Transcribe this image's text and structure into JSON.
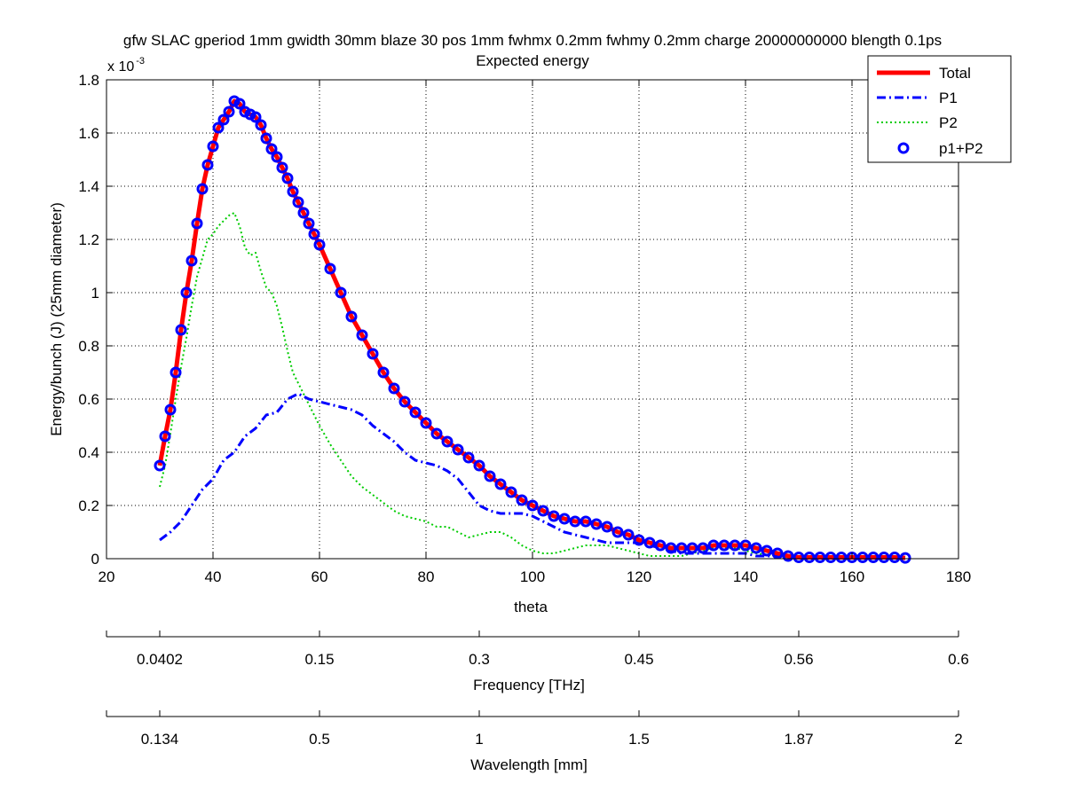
{
  "chart_data": {
    "type": "line",
    "title_line1": "gfw SLAC gperiod 1mm gwidth 30mm blaze 30 pos 1mm fwhmx 0.2mm fwhmy 0.2mm charge 20000000000 blength 0.1ps",
    "title_line2": "Expected energy",
    "xlabel": "theta",
    "ylabel": "Energy/bunch (J)  (25mm diameter)",
    "y_exponent_prefix": "x 10",
    "y_exponent_power": "-3",
    "xlim": [
      20,
      180
    ],
    "ylim": [
      0,
      0.0018
    ],
    "grid": true,
    "legend_position": "top-right",
    "x_ticks": [
      20,
      40,
      60,
      80,
      100,
      120,
      140,
      160,
      180
    ],
    "x_tick_labels": [
      "20",
      "40",
      "60",
      "80",
      "100",
      "120",
      "140",
      "160",
      "180"
    ],
    "y_ticks": [
      0,
      0.0002,
      0.0004,
      0.0006,
      0.0008,
      0.001,
      0.0012,
      0.0014,
      0.0016,
      0.0018
    ],
    "y_tick_labels": [
      "0",
      "0.2",
      "0.4",
      "0.6",
      "0.8",
      "1",
      "1.2",
      "1.4",
      "1.6",
      "1.8"
    ],
    "secondary_axes": [
      {
        "label": "Frequency [THz]",
        "tick_theta": [
          30,
          60,
          90,
          120,
          150,
          180
        ],
        "tick_labels": [
          "0.0402",
          "0.15",
          "0.3",
          "0.45",
          "0.56",
          "0.6"
        ]
      },
      {
        "label": "Wavelength [mm]",
        "tick_theta": [
          30,
          60,
          90,
          120,
          150,
          180
        ],
        "tick_labels": [
          "0.134",
          "0.5",
          "1",
          "1.5",
          "1.87",
          "2"
        ]
      }
    ],
    "series": [
      {
        "name": "Total",
        "color": "#ff0000",
        "style": "solid-thick",
        "points": [
          [
            30,
            0.00035
          ],
          [
            31,
            0.00046
          ],
          [
            32,
            0.00056
          ],
          [
            33,
            0.0007
          ],
          [
            34,
            0.00086
          ],
          [
            35,
            0.001
          ],
          [
            36,
            0.00112
          ],
          [
            37,
            0.00126
          ],
          [
            38,
            0.00139
          ],
          [
            39,
            0.00148
          ],
          [
            40,
            0.00155
          ],
          [
            41,
            0.00162
          ],
          [
            42,
            0.00165
          ],
          [
            43,
            0.00168
          ],
          [
            44,
            0.00172
          ],
          [
            45,
            0.00171
          ],
          [
            46,
            0.00168
          ],
          [
            47,
            0.00167
          ],
          [
            48,
            0.00166
          ],
          [
            49,
            0.00163
          ],
          [
            50,
            0.00158
          ],
          [
            51,
            0.00154
          ],
          [
            52,
            0.00151
          ],
          [
            53,
            0.00147
          ],
          [
            54,
            0.00143
          ],
          [
            55,
            0.00138
          ],
          [
            56,
            0.00134
          ],
          [
            57,
            0.0013
          ],
          [
            58,
            0.00126
          ],
          [
            59,
            0.00122
          ],
          [
            60,
            0.00118
          ],
          [
            62,
            0.00109
          ],
          [
            64,
            0.001
          ],
          [
            66,
            0.00091
          ],
          [
            68,
            0.00084
          ],
          [
            70,
            0.00077
          ],
          [
            72,
            0.0007
          ],
          [
            74,
            0.00064
          ],
          [
            76,
            0.00059
          ],
          [
            78,
            0.00055
          ],
          [
            80,
            0.00051
          ],
          [
            82,
            0.00047
          ],
          [
            84,
            0.00044
          ],
          [
            86,
            0.00041
          ],
          [
            88,
            0.00038
          ],
          [
            90,
            0.00035
          ],
          [
            92,
            0.00031
          ],
          [
            94,
            0.00028
          ],
          [
            96,
            0.00025
          ],
          [
            98,
            0.00022
          ],
          [
            100,
            0.0002
          ],
          [
            102,
            0.00018
          ],
          [
            104,
            0.00016
          ],
          [
            106,
            0.00015
          ],
          [
            108,
            0.00014
          ],
          [
            110,
            0.00014
          ],
          [
            112,
            0.00013
          ],
          [
            114,
            0.00012
          ],
          [
            116,
            0.0001
          ],
          [
            118,
            9e-05
          ],
          [
            120,
            7e-05
          ],
          [
            122,
            6e-05
          ],
          [
            124,
            5e-05
          ],
          [
            126,
            4e-05
          ],
          [
            128,
            4e-05
          ],
          [
            130,
            4e-05
          ],
          [
            132,
            4e-05
          ],
          [
            134,
            5e-05
          ],
          [
            136,
            5e-05
          ],
          [
            138,
            5e-05
          ],
          [
            140,
            5e-05
          ],
          [
            142,
            4e-05
          ],
          [
            144,
            3e-05
          ],
          [
            146,
            2e-05
          ],
          [
            148,
            1e-05
          ],
          [
            150,
            5e-06
          ],
          [
            152,
            5e-06
          ],
          [
            154,
            5e-06
          ],
          [
            156,
            5e-06
          ],
          [
            158,
            5e-06
          ],
          [
            160,
            5e-06
          ],
          [
            162,
            5e-06
          ],
          [
            164,
            5e-06
          ],
          [
            166,
            5e-06
          ],
          [
            168,
            5e-06
          ],
          [
            170,
            3e-06
          ]
        ]
      },
      {
        "name": "P1",
        "color": "#0000ff",
        "style": "dashdot",
        "points": [
          [
            30,
            7e-05
          ],
          [
            32,
            0.0001
          ],
          [
            34,
            0.00014
          ],
          [
            36,
            0.0002
          ],
          [
            38,
            0.00026
          ],
          [
            40,
            0.0003
          ],
          [
            42,
            0.00037
          ],
          [
            44,
            0.0004
          ],
          [
            46,
            0.00046
          ],
          [
            48,
            0.00049
          ],
          [
            50,
            0.00054
          ],
          [
            52,
            0.00055
          ],
          [
            54,
            0.0006
          ],
          [
            56,
            0.00062
          ],
          [
            58,
            0.0006
          ],
          [
            60,
            0.00059
          ],
          [
            62,
            0.00058
          ],
          [
            64,
            0.00057
          ],
          [
            66,
            0.00056
          ],
          [
            68,
            0.00054
          ],
          [
            70,
            0.0005
          ],
          [
            72,
            0.00047
          ],
          [
            74,
            0.00044
          ],
          [
            76,
            0.0004
          ],
          [
            78,
            0.00037
          ],
          [
            80,
            0.00036
          ],
          [
            82,
            0.00035
          ],
          [
            84,
            0.00033
          ],
          [
            86,
            0.0003
          ],
          [
            88,
            0.00025
          ],
          [
            90,
            0.0002
          ],
          [
            92,
            0.00018
          ],
          [
            94,
            0.00017
          ],
          [
            96,
            0.00017
          ],
          [
            98,
            0.00017
          ],
          [
            100,
            0.00016
          ],
          [
            102,
            0.00014
          ],
          [
            104,
            0.00012
          ],
          [
            106,
            0.0001
          ],
          [
            108,
            9e-05
          ],
          [
            110,
            8e-05
          ],
          [
            112,
            7e-05
          ],
          [
            114,
            6e-05
          ],
          [
            116,
            6e-05
          ],
          [
            118,
            6e-05
          ],
          [
            120,
            6e-05
          ],
          [
            122,
            5e-05
          ],
          [
            124,
            4e-05
          ],
          [
            126,
            3e-05
          ],
          [
            128,
            2e-05
          ],
          [
            130,
            2e-05
          ],
          [
            132,
            2e-05
          ],
          [
            134,
            2e-05
          ],
          [
            136,
            2e-05
          ],
          [
            138,
            2e-05
          ],
          [
            140,
            2e-05
          ],
          [
            142,
            1e-05
          ],
          [
            146,
            1e-05
          ],
          [
            150,
            5e-06
          ],
          [
            160,
            5e-06
          ],
          [
            170,
            3e-06
          ]
        ]
      },
      {
        "name": "P2",
        "color": "#00cc00",
        "style": "dotted",
        "points": [
          [
            30,
            0.00027
          ],
          [
            31,
            0.00035
          ],
          [
            32,
            0.00047
          ],
          [
            33,
            0.0006
          ],
          [
            34,
            0.00072
          ],
          [
            35,
            0.00083
          ],
          [
            36,
            0.00095
          ],
          [
            37,
            0.00106
          ],
          [
            38,
            0.00113
          ],
          [
            39,
            0.0012
          ],
          [
            40,
            0.00122
          ],
          [
            41,
            0.00125
          ],
          [
            42,
            0.00127
          ],
          [
            43,
            0.00129
          ],
          [
            44,
            0.0013
          ],
          [
            45,
            0.00125
          ],
          [
            46,
            0.00117
          ],
          [
            47,
            0.00114
          ],
          [
            48,
            0.00115
          ],
          [
            49,
            0.00108
          ],
          [
            50,
            0.00102
          ],
          [
            51,
            0.001
          ],
          [
            52,
            0.00095
          ],
          [
            53,
            0.00087
          ],
          [
            54,
            0.00078
          ],
          [
            55,
            0.0007
          ],
          [
            56,
            0.00066
          ],
          [
            58,
            0.00058
          ],
          [
            60,
            0.0005
          ],
          [
            62,
            0.00043
          ],
          [
            64,
            0.00037
          ],
          [
            66,
            0.00031
          ],
          [
            68,
            0.00027
          ],
          [
            70,
            0.00024
          ],
          [
            72,
            0.00021
          ],
          [
            74,
            0.00018
          ],
          [
            76,
            0.00016
          ],
          [
            78,
            0.00015
          ],
          [
            80,
            0.00014
          ],
          [
            82,
            0.00012
          ],
          [
            84,
            0.00012
          ],
          [
            86,
            0.0001
          ],
          [
            88,
            8e-05
          ],
          [
            90,
            9e-05
          ],
          [
            92,
            0.0001
          ],
          [
            94,
            0.0001
          ],
          [
            96,
            8e-05
          ],
          [
            98,
            5e-05
          ],
          [
            100,
            3e-05
          ],
          [
            102,
            2e-05
          ],
          [
            104,
            2e-05
          ],
          [
            106,
            3e-05
          ],
          [
            108,
            4e-05
          ],
          [
            110,
            5e-05
          ],
          [
            112,
            5e-05
          ],
          [
            114,
            5e-05
          ],
          [
            116,
            4e-05
          ],
          [
            118,
            3e-05
          ],
          [
            120,
            2e-05
          ],
          [
            122,
            1e-05
          ],
          [
            124,
            1e-05
          ],
          [
            126,
            1e-05
          ],
          [
            128,
            1e-05
          ],
          [
            130,
            2e-05
          ],
          [
            132,
            3e-05
          ],
          [
            134,
            4e-05
          ],
          [
            136,
            4e-05
          ],
          [
            138,
            4e-05
          ],
          [
            140,
            3e-05
          ],
          [
            142,
            2e-05
          ],
          [
            146,
            1e-05
          ],
          [
            150,
            5e-06
          ],
          [
            160,
            3e-06
          ],
          [
            170,
            2e-06
          ]
        ]
      },
      {
        "name": "p1+P2",
        "color": "#0000ff",
        "style": "circles",
        "points_from_series": "Total"
      }
    ]
  }
}
